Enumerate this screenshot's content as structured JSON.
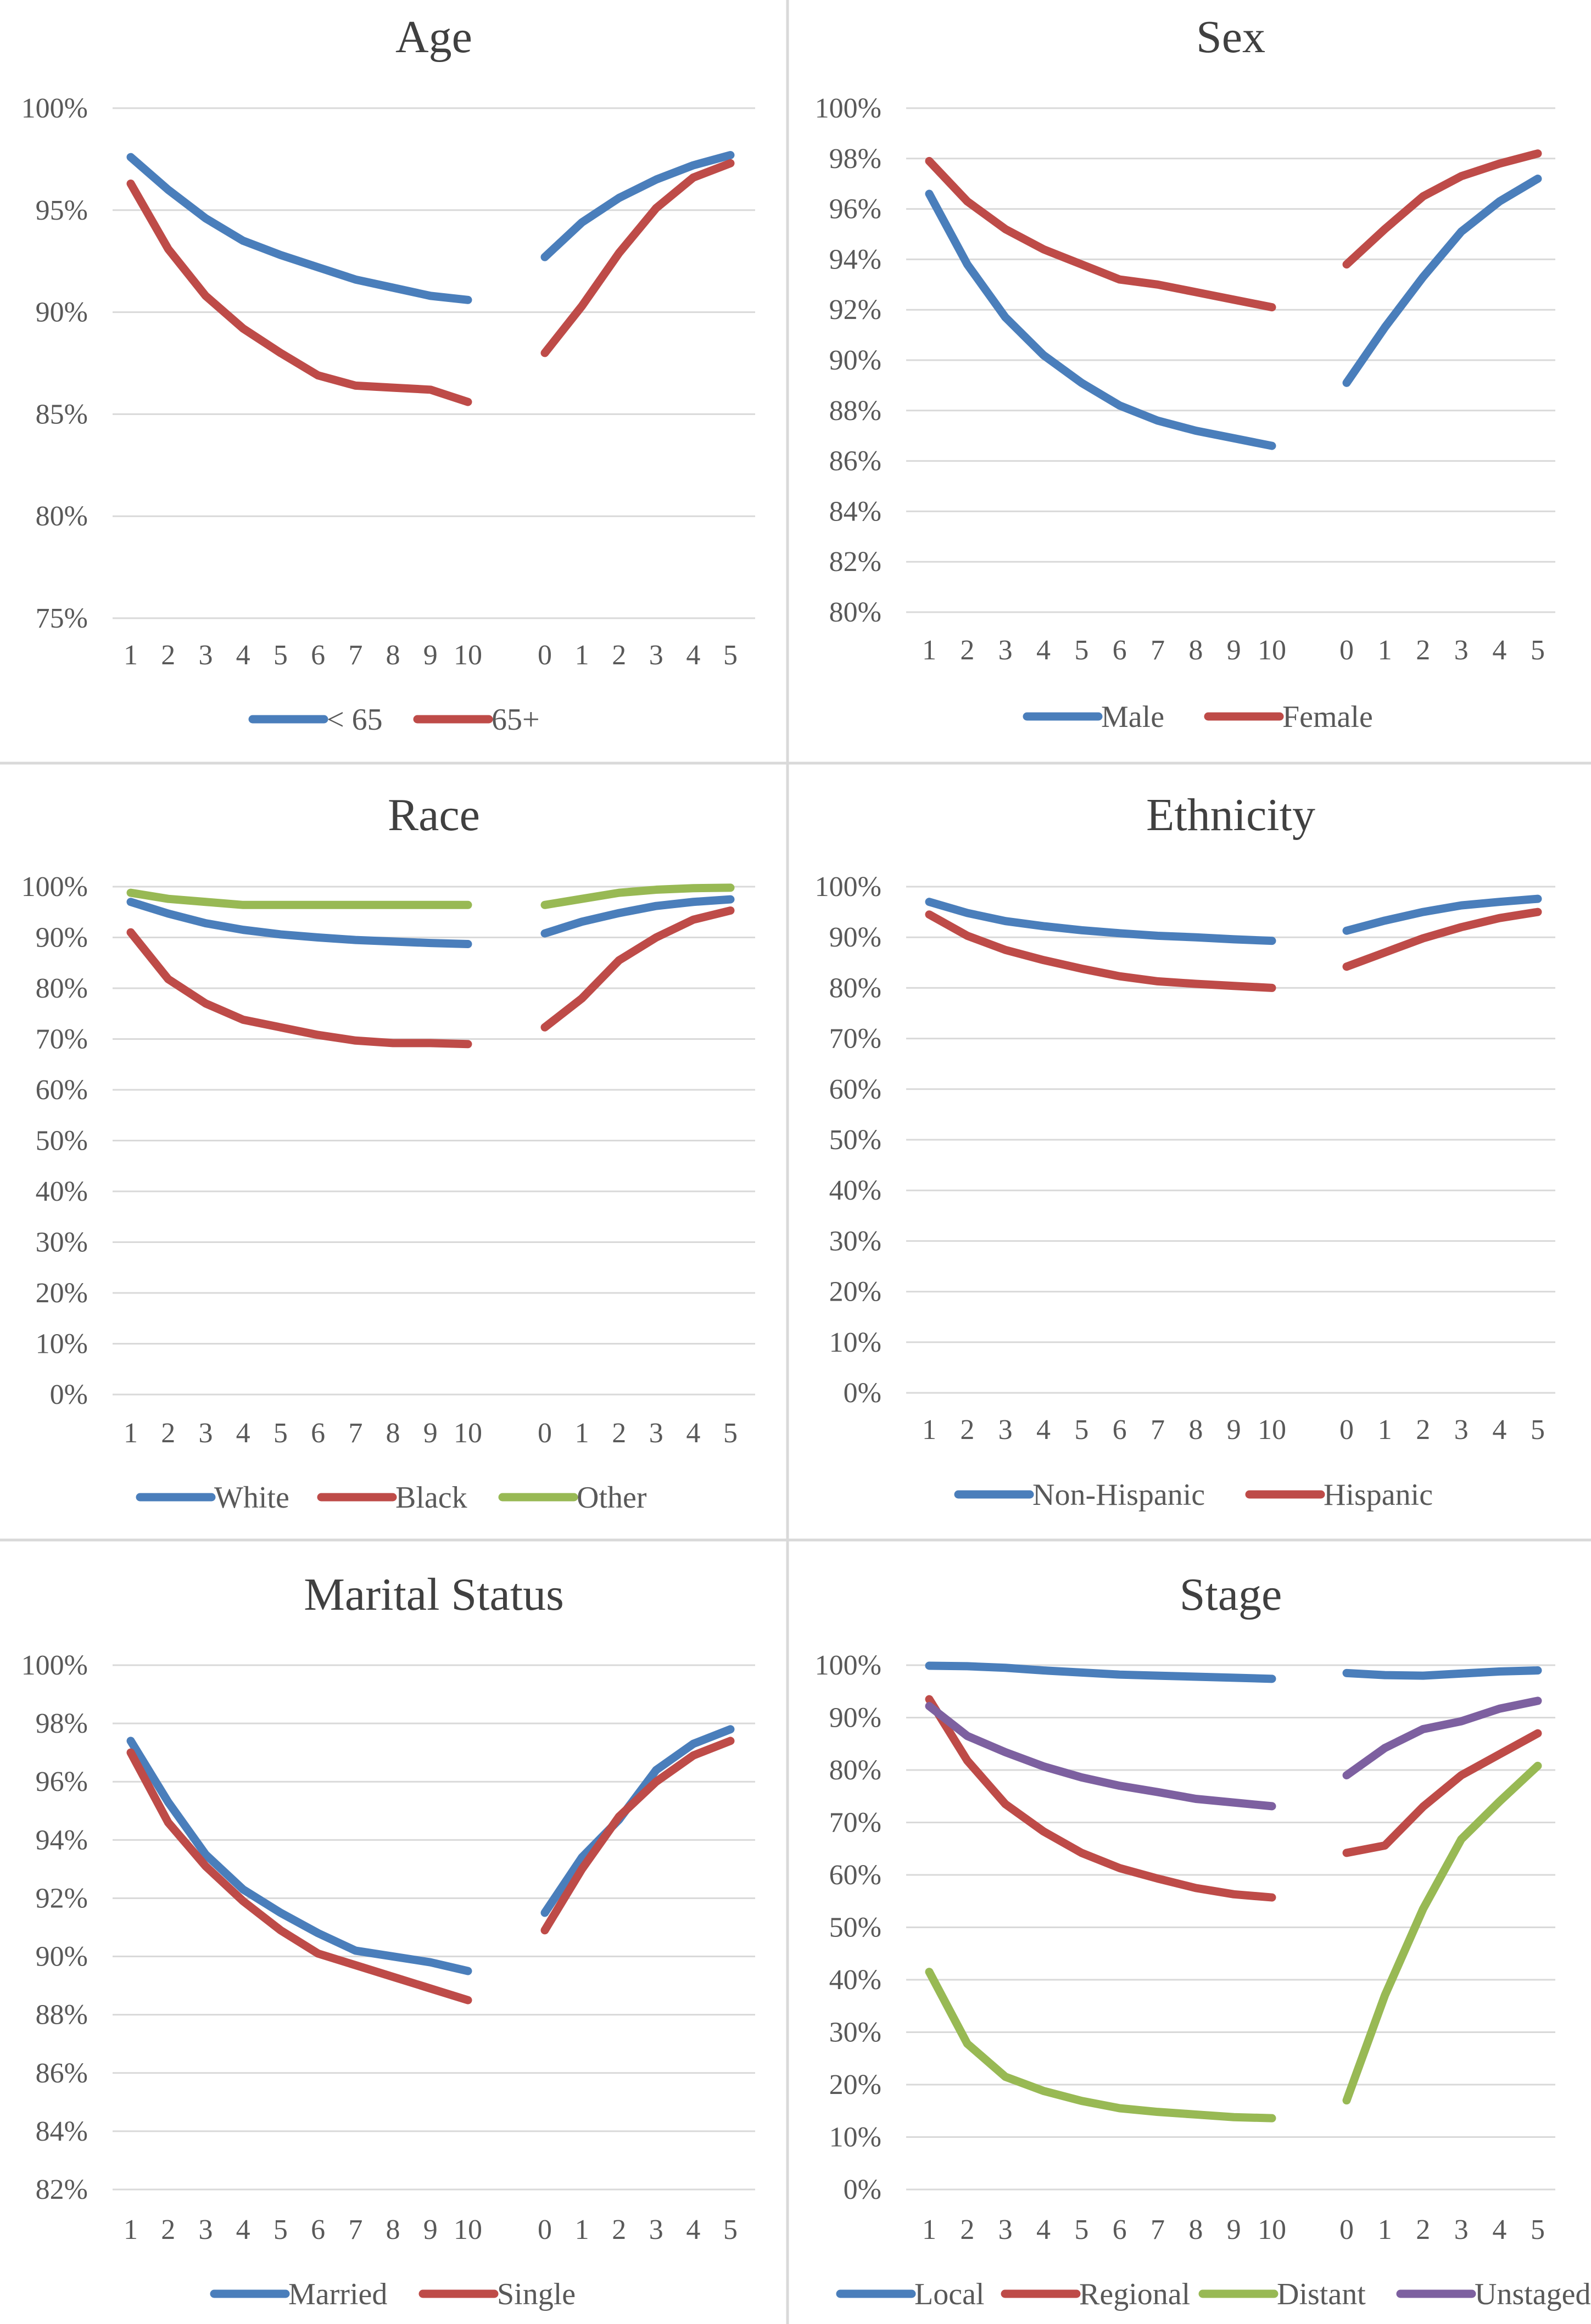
{
  "colors": {
    "blue": "#4a7ebb",
    "red": "#be4b48",
    "green": "#98b954",
    "purple": "#7d60a0"
  },
  "chart_data": [
    {
      "type": "line",
      "title": "Age",
      "y_ticks": [
        "75%",
        "80%",
        "85%",
        "90%",
        "95%",
        "100%"
      ],
      "ylim": [
        75,
        100
      ],
      "x_left": [
        "1",
        "2",
        "3",
        "4",
        "5",
        "6",
        "7",
        "8",
        "9",
        "10"
      ],
      "x_right": [
        "0",
        "1",
        "2",
        "3",
        "4",
        "5"
      ],
      "series": [
        {
          "name": "< 65",
          "color": "#4a7ebb",
          "left": [
            97.6,
            96.0,
            94.6,
            93.5,
            92.8,
            92.2,
            91.6,
            91.2,
            90.8,
            90.6
          ],
          "right": [
            92.7,
            94.4,
            95.6,
            96.5,
            97.2,
            97.7
          ]
        },
        {
          "name": "65+",
          "color": "#be4b48",
          "left": [
            96.3,
            93.1,
            90.8,
            89.2,
            88.0,
            86.9,
            86.4,
            86.3,
            86.2,
            85.6
          ],
          "right": [
            88.0,
            90.3,
            92.9,
            95.1,
            96.6,
            97.3
          ]
        }
      ]
    },
    {
      "type": "line",
      "title": "Sex",
      "y_ticks": [
        "80%",
        "82%",
        "84%",
        "86%",
        "88%",
        "90%",
        "92%",
        "94%",
        "96%",
        "98%",
        "100%"
      ],
      "ylim": [
        80,
        100
      ],
      "x_left": [
        "1",
        "2",
        "3",
        "4",
        "5",
        "6",
        "7",
        "8",
        "9",
        "10"
      ],
      "x_right": [
        "0",
        "1",
        "2",
        "3",
        "4",
        "5"
      ],
      "series": [
        {
          "name": "Male",
          "color": "#4a7ebb",
          "left": [
            96.6,
            93.8,
            91.7,
            90.2,
            89.1,
            88.2,
            87.6,
            87.2,
            86.9,
            86.6
          ],
          "right": [
            89.1,
            91.3,
            93.3,
            95.1,
            96.3,
            97.2
          ]
        },
        {
          "name": "Female",
          "color": "#be4b48",
          "left": [
            97.9,
            96.3,
            95.2,
            94.4,
            93.8,
            93.2,
            93.0,
            92.7,
            92.4,
            92.1
          ],
          "right": [
            93.8,
            95.2,
            96.5,
            97.3,
            97.8,
            98.2
          ]
        }
      ]
    },
    {
      "type": "line",
      "title": "Race",
      "y_ticks": [
        "0%",
        "10%",
        "20%",
        "30%",
        "40%",
        "50%",
        "60%",
        "70%",
        "80%",
        "90%",
        "100%"
      ],
      "ylim": [
        0,
        100
      ],
      "x_left": [
        "1",
        "2",
        "3",
        "4",
        "5",
        "6",
        "7",
        "8",
        "9",
        "10"
      ],
      "x_right": [
        "0",
        "1",
        "2",
        "3",
        "4",
        "5"
      ],
      "series": [
        {
          "name": "White",
          "color": "#4a7ebb",
          "left": [
            97.0,
            94.7,
            92.8,
            91.5,
            90.6,
            90.0,
            89.5,
            89.2,
            88.9,
            88.7
          ],
          "right": [
            90.8,
            93.1,
            94.8,
            96.2,
            97.0,
            97.5
          ]
        },
        {
          "name": "Black",
          "color": "#be4b48",
          "left": [
            91.0,
            81.8,
            77.0,
            73.8,
            72.3,
            70.8,
            69.7,
            69.2,
            69.2,
            69.0
          ],
          "right": [
            72.3,
            78.0,
            85.5,
            90.0,
            93.5,
            95.3
          ]
        },
        {
          "name": "Other",
          "color": "#98b954",
          "left": [
            98.8,
            97.6,
            97.0,
            96.4,
            96.4,
            96.4,
            96.4,
            96.4,
            96.4,
            96.4
          ],
          "right": [
            96.4,
            97.6,
            98.8,
            99.4,
            99.7,
            99.8
          ]
        }
      ]
    },
    {
      "type": "line",
      "title": "Ethnicity",
      "y_ticks": [
        "0%",
        "10%",
        "20%",
        "30%",
        "40%",
        "50%",
        "60%",
        "70%",
        "80%",
        "90%",
        "100%"
      ],
      "ylim": [
        0,
        100
      ],
      "x_left": [
        "1",
        "2",
        "3",
        "4",
        "5",
        "6",
        "7",
        "8",
        "9",
        "10"
      ],
      "x_right": [
        "0",
        "1",
        "2",
        "3",
        "4",
        "5"
      ],
      "series": [
        {
          "name": "Non-Hispanic",
          "color": "#4a7ebb",
          "left": [
            97.0,
            94.8,
            93.2,
            92.2,
            91.4,
            90.8,
            90.3,
            90.0,
            89.6,
            89.3
          ],
          "right": [
            91.3,
            93.3,
            95.0,
            96.3,
            97.0,
            97.6
          ]
        },
        {
          "name": "Hispanic",
          "color": "#be4b48",
          "left": [
            94.5,
            90.3,
            87.5,
            85.5,
            83.8,
            82.3,
            81.3,
            80.8,
            80.4,
            80.0
          ],
          "right": [
            84.2,
            87.0,
            89.8,
            92.0,
            93.8,
            95.0
          ]
        }
      ]
    },
    {
      "type": "line",
      "title": "Marital Status",
      "y_ticks": [
        "82%",
        "84%",
        "86%",
        "88%",
        "90%",
        "92%",
        "94%",
        "96%",
        "98%",
        "100%"
      ],
      "ylim": [
        82,
        100
      ],
      "x_left": [
        "1",
        "2",
        "3",
        "4",
        "5",
        "6",
        "7",
        "8",
        "9",
        "10"
      ],
      "x_right": [
        "0",
        "1",
        "2",
        "3",
        "4",
        "5"
      ],
      "series": [
        {
          "name": "Married",
          "color": "#4a7ebb",
          "left": [
            97.4,
            95.3,
            93.5,
            92.3,
            91.5,
            90.8,
            90.2,
            90.0,
            89.8,
            89.5
          ],
          "right": [
            91.5,
            93.4,
            94.7,
            96.4,
            97.3,
            97.8
          ]
        },
        {
          "name": "Single",
          "color": "#be4b48",
          "left": [
            97.0,
            94.6,
            93.1,
            91.9,
            90.9,
            90.1,
            89.7,
            89.3,
            88.9,
            88.5
          ],
          "right": [
            90.9,
            93.0,
            94.8,
            96.0,
            96.9,
            97.4
          ]
        }
      ]
    },
    {
      "type": "line",
      "title": "Stage",
      "y_ticks": [
        "0%",
        "10%",
        "20%",
        "30%",
        "40%",
        "50%",
        "60%",
        "70%",
        "80%",
        "90%",
        "100%"
      ],
      "ylim": [
        0,
        100
      ],
      "x_left": [
        "1",
        "2",
        "3",
        "4",
        "5",
        "6",
        "7",
        "8",
        "9",
        "10"
      ],
      "x_right": [
        "0",
        "1",
        "2",
        "3",
        "4",
        "5"
      ],
      "series": [
        {
          "name": "Local",
          "color": "#4a7ebb",
          "left": [
            99.9,
            99.8,
            99.5,
            99.0,
            98.6,
            98.2,
            98.0,
            97.8,
            97.6,
            97.4
          ],
          "right": [
            98.5,
            98.1,
            98.0,
            98.4,
            98.8,
            99.0
          ]
        },
        {
          "name": "Regional",
          "color": "#be4b48",
          "left": [
            93.5,
            81.8,
            73.5,
            68.3,
            64.2,
            61.3,
            59.3,
            57.5,
            56.3,
            55.7
          ],
          "right": [
            64.2,
            65.6,
            73.0,
            79.0,
            83.0,
            87.0
          ]
        },
        {
          "name": "Distant",
          "color": "#98b954",
          "left": [
            41.5,
            27.8,
            21.5,
            18.8,
            16.9,
            15.5,
            14.8,
            14.3,
            13.8,
            13.6
          ],
          "right": [
            17.0,
            37.0,
            53.5,
            66.8,
            74.0,
            80.8
          ]
        },
        {
          "name": "Unstaged",
          "color": "#7d60a0",
          "left": [
            92.2,
            86.5,
            83.4,
            80.7,
            78.6,
            77.0,
            75.8,
            74.5,
            73.8,
            73.1
          ],
          "right": [
            79.0,
            84.2,
            87.8,
            89.3,
            91.7,
            93.2
          ]
        }
      ]
    }
  ]
}
